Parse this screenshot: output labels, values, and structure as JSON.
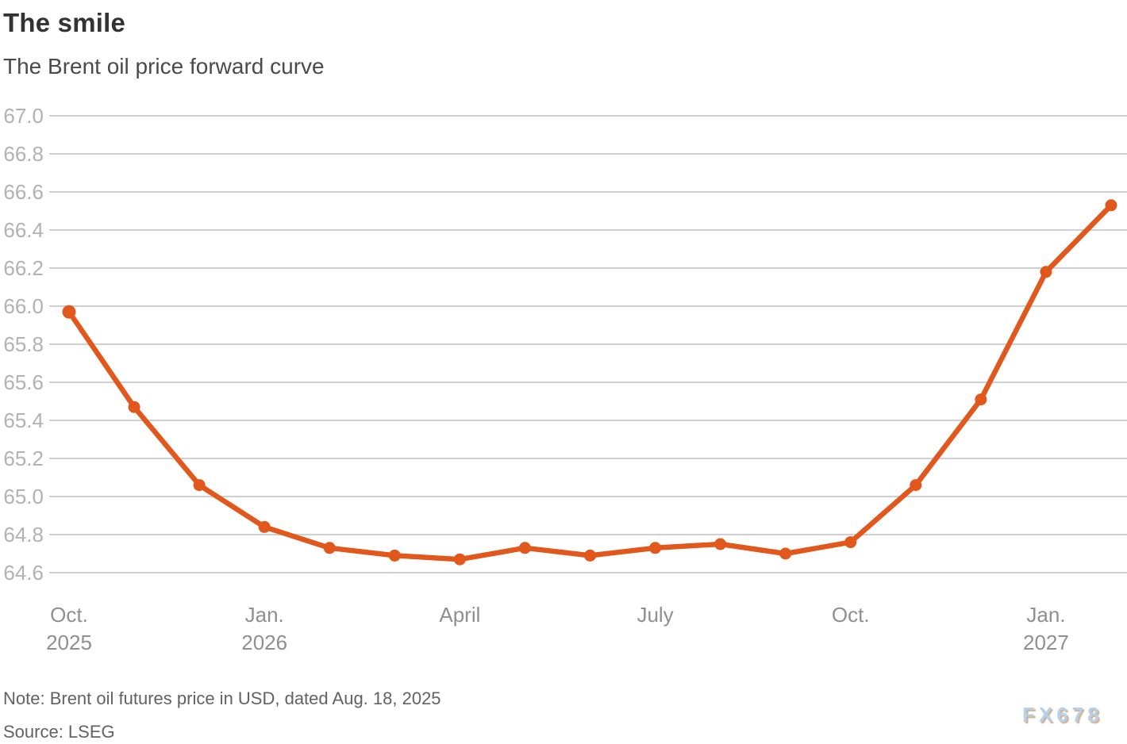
{
  "header": {
    "title": "The smile",
    "subtitle": "The Brent oil price forward curve"
  },
  "footer": {
    "note": "Note: Brent oil futures price in USD, dated Aug. 18, 2025",
    "source": "Source: LSEG",
    "watermark": "FX678"
  },
  "colors": {
    "line": "#e2571c",
    "point": "#e2571c",
    "grid": "#d0d0d0",
    "y_label": "#b2b2b2",
    "x_label": "#8f8f8f",
    "title": "#333333",
    "subtitle": "#4a4a4a",
    "note": "#626262",
    "watermark_blue": "#b9d1e8",
    "watermark_shadow": "#cdb296"
  },
  "chart_data": {
    "type": "line",
    "title": "The smile",
    "subtitle": "The Brent oil price forward curve",
    "x": [
      "Oct. 2025",
      "Nov. 2025",
      "Dec. 2025",
      "Jan. 2026",
      "Feb. 2026",
      "Mar. 2026",
      "Apr. 2026",
      "May 2026",
      "Jun. 2026",
      "Jul. 2026",
      "Aug. 2026",
      "Sep. 2026",
      "Oct. 2026",
      "Nov. 2026",
      "Dec. 2026",
      "Jan. 2027",
      "Feb. 2027"
    ],
    "values": [
      65.97,
      65.47,
      65.06,
      64.84,
      64.73,
      64.69,
      64.67,
      64.73,
      64.69,
      64.73,
      64.75,
      64.7,
      64.76,
      65.06,
      65.51,
      66.18,
      66.53
    ],
    "ylabel": "",
    "xlabel": "",
    "ylim": [
      64.6,
      67.0
    ],
    "ytick_step": 0.2,
    "yticks": [
      "67.0",
      "66.8",
      "66.6",
      "66.4",
      "66.2",
      "66.0",
      "65.8",
      "65.6",
      "65.4",
      "65.2",
      "65.0",
      "64.8",
      "64.6"
    ],
    "xticks": [
      {
        "index": 0,
        "label": "Oct.",
        "sub": "2025"
      },
      {
        "index": 3,
        "label": "Jan.",
        "sub": "2026"
      },
      {
        "index": 6,
        "label": "April",
        "sub": ""
      },
      {
        "index": 9,
        "label": "July",
        "sub": ""
      },
      {
        "index": 12,
        "label": "Oct.",
        "sub": ""
      },
      {
        "index": 15,
        "label": "Jan.",
        "sub": "2027"
      }
    ],
    "grid": true,
    "legend": null,
    "marker": "circle",
    "series_name": "Brent oil futures price (USD)"
  }
}
